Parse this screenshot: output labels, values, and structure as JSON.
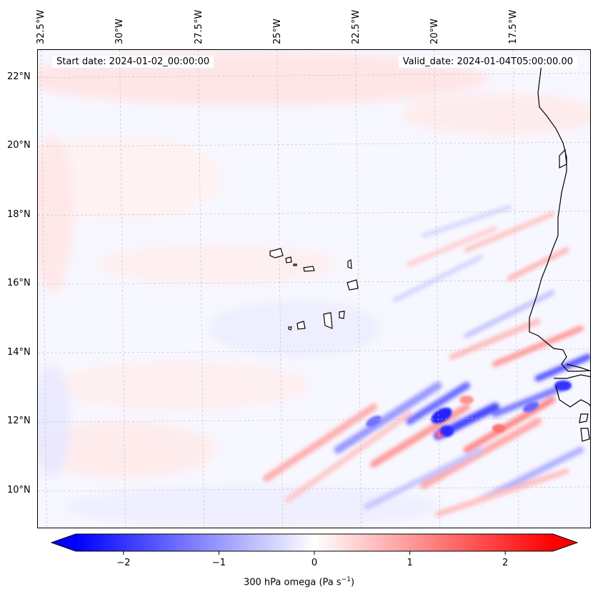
{
  "map": {
    "start_date": "Start date: 2024-01-02_00:00:00",
    "valid_date": "Valid_date: 2024-01-04T05:00:00.00",
    "lon_labels": [
      "32.5°W",
      "30°W",
      "27.5°W",
      "25°W",
      "22.5°W",
      "20°W",
      "17.5°W"
    ],
    "lat_labels": [
      "22°N",
      "20°N",
      "18°N",
      "16°N",
      "14°N",
      "12°N",
      "10°N"
    ],
    "lon_values": [
      -32.5,
      -30,
      -27.5,
      -25,
      -22.5,
      -20,
      -17.5
    ],
    "lat_values": [
      22,
      20,
      18,
      16,
      14,
      12,
      10
    ],
    "extent": {
      "lon_min": -32.6,
      "lon_max": -15.0,
      "lat_min": 8.9,
      "lat_max": 22.8
    },
    "coast_color": "#000000",
    "gridline_color": "#bbbbbb"
  },
  "colorbar": {
    "label_main": "300 hPa omega (Pa s",
    "label_sup": "−1",
    "label_end": ")",
    "ticks": [
      -2,
      -1,
      0,
      1,
      2
    ],
    "tick_labels": [
      "−2",
      "−1",
      "0",
      "1",
      "2"
    ],
    "range": [
      -2.5,
      2.5
    ],
    "colormap": "bwr",
    "extend": "both",
    "color_min": "#0000ff",
    "color_mid": "#ffffff",
    "color_max": "#ff0000"
  }
}
